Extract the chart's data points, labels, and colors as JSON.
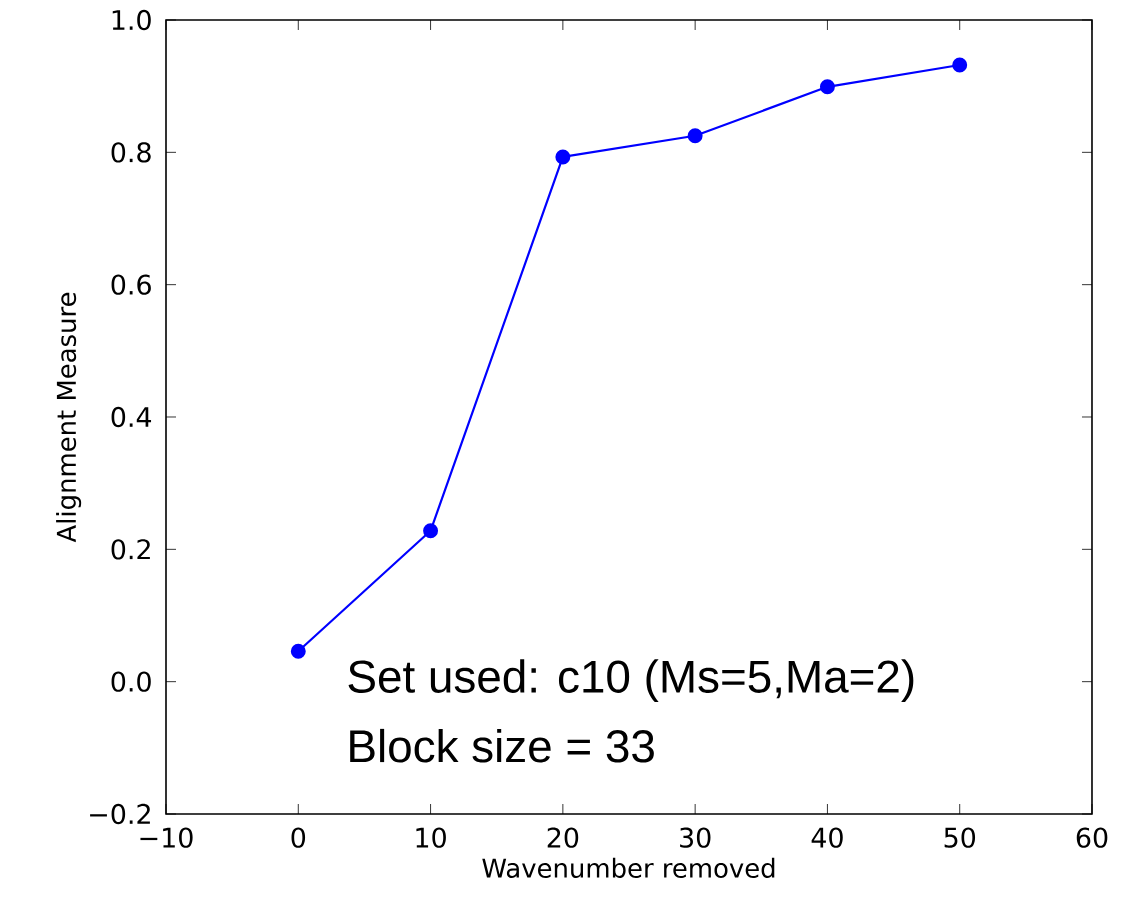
{
  "chart_data": {
    "type": "line",
    "xlabel": "Wavenumber removed",
    "ylabel": "Alignment Measure",
    "x": [
      0,
      10,
      20,
      30,
      40,
      50
    ],
    "series": [
      {
        "color": "#0000ff",
        "values": [
          0.046,
          0.228,
          0.793,
          0.825,
          0.899,
          0.932
        ]
      }
    ],
    "marker": "circle",
    "line_style": "solid",
    "xlim": [
      -10,
      60
    ],
    "xticks": [
      {
        "value": -10,
        "label": "−10"
      },
      0,
      10,
      20,
      30,
      40,
      50,
      60
    ],
    "ylim": [
      -0.2,
      1.0
    ],
    "yticks": [
      {
        "value": -0.2,
        "label": "−0.2"
      },
      {
        "value": 0,
        "label": "0.0"
      },
      0.2,
      0.4,
      0.6,
      0.8,
      {
        "value": 1,
        "label": "1.0"
      }
    ],
    "annotations": [
      "Set used: c10 (Ms=5,Ma=2)",
      "Block size = 33"
    ]
  }
}
